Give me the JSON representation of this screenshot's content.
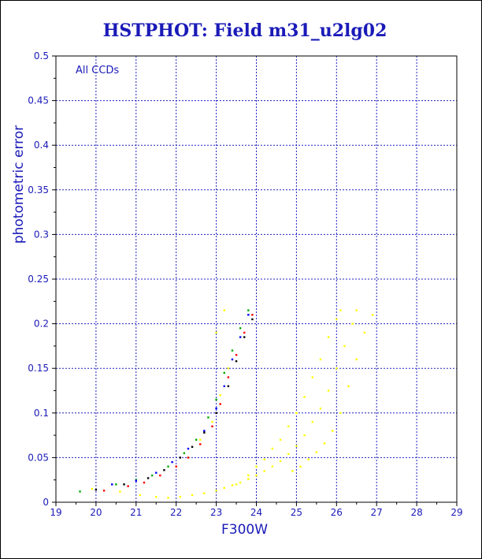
{
  "chart_data": {
    "type": "scatter",
    "title": "HSTPHOT: Field m31_u2lg02",
    "xlabel": "F300W",
    "ylabel": "photometric error",
    "annotation": "All CCDs",
    "xlim": [
      19,
      29
    ],
    "ylim": [
      0,
      0.5
    ],
    "xticks": [
      "19",
      "20",
      "21",
      "22",
      "23",
      "24",
      "25",
      "26",
      "27",
      "28",
      "29"
    ],
    "yticks": [
      "0",
      "0.05",
      "0.1",
      "0.15",
      "0.2",
      "0.25",
      "0.3",
      "0.35",
      "0.4",
      "0.45",
      "0.5"
    ],
    "grid": true,
    "colors": {
      "title": "#1a1ab8",
      "axis": "#1a1ab8",
      "grid": "#2020c0",
      "frame": "#000000"
    },
    "series": [
      {
        "color": "#ffff00",
        "points": [
          [
            19.9,
            0.015
          ],
          [
            20.6,
            0.012
          ],
          [
            21.1,
            0.008
          ],
          [
            21.5,
            0.006
          ],
          [
            21.8,
            0.005
          ],
          [
            22.1,
            0.006
          ],
          [
            22.4,
            0.008
          ],
          [
            22.7,
            0.01
          ],
          [
            23.0,
            0.013
          ],
          [
            23.2,
            0.016
          ],
          [
            23.4,
            0.019
          ],
          [
            23.6,
            0.022
          ],
          [
            23.8,
            0.026
          ],
          [
            24.0,
            0.03
          ],
          [
            24.2,
            0.035
          ],
          [
            24.4,
            0.04
          ],
          [
            24.6,
            0.046
          ],
          [
            24.8,
            0.054
          ],
          [
            25.0,
            0.063
          ],
          [
            25.2,
            0.075
          ],
          [
            25.4,
            0.09
          ],
          [
            25.6,
            0.105
          ],
          [
            25.8,
            0.125
          ],
          [
            26.0,
            0.15
          ],
          [
            26.2,
            0.175
          ],
          [
            26.4,
            0.2
          ],
          [
            26.5,
            0.215
          ],
          [
            23.5,
            0.02
          ],
          [
            23.8,
            0.03
          ],
          [
            24.0,
            0.04
          ],
          [
            24.2,
            0.048
          ],
          [
            24.4,
            0.06
          ],
          [
            24.6,
            0.07
          ],
          [
            24.8,
            0.085
          ],
          [
            25.0,
            0.1
          ],
          [
            25.2,
            0.118
          ],
          [
            25.4,
            0.14
          ],
          [
            25.6,
            0.16
          ],
          [
            25.8,
            0.185
          ],
          [
            26.0,
            0.205
          ],
          [
            26.1,
            0.215
          ],
          [
            24.9,
            0.035
          ],
          [
            25.1,
            0.04
          ],
          [
            25.3,
            0.048
          ],
          [
            25.5,
            0.056
          ],
          [
            25.7,
            0.066
          ],
          [
            25.9,
            0.08
          ],
          [
            26.1,
            0.1
          ],
          [
            26.3,
            0.13
          ],
          [
            26.5,
            0.16
          ],
          [
            26.7,
            0.19
          ],
          [
            26.9,
            0.21
          ],
          [
            23.2,
            0.215
          ],
          [
            23.0,
            0.19
          ],
          [
            23.1,
            0.12
          ],
          [
            23.3,
            0.15
          ],
          [
            22.9,
            0.09
          ],
          [
            22.6,
            0.07
          ],
          [
            22.3,
            0.05
          ],
          [
            22.0,
            0.04
          ]
        ]
      },
      {
        "color": "#ff0000",
        "points": [
          [
            20.2,
            0.013
          ],
          [
            20.8,
            0.018
          ],
          [
            21.2,
            0.022
          ],
          [
            21.6,
            0.03
          ],
          [
            22.0,
            0.04
          ],
          [
            22.3,
            0.05
          ],
          [
            22.6,
            0.065
          ],
          [
            22.9,
            0.085
          ],
          [
            23.1,
            0.11
          ],
          [
            23.3,
            0.14
          ],
          [
            23.5,
            0.165
          ],
          [
            23.7,
            0.19
          ],
          [
            23.9,
            0.21
          ]
        ]
      },
      {
        "color": "#00aa00",
        "points": [
          [
            19.6,
            0.012
          ],
          [
            20.5,
            0.02
          ],
          [
            21.0,
            0.025
          ],
          [
            21.4,
            0.03
          ],
          [
            21.8,
            0.04
          ],
          [
            22.2,
            0.055
          ],
          [
            22.5,
            0.07
          ],
          [
            22.8,
            0.095
          ],
          [
            23.0,
            0.115
          ],
          [
            23.2,
            0.145
          ],
          [
            23.4,
            0.17
          ],
          [
            23.6,
            0.195
          ],
          [
            23.8,
            0.215
          ]
        ]
      },
      {
        "color": "#0000ff",
        "points": [
          [
            20.4,
            0.02
          ],
          [
            21.0,
            0.024
          ],
          [
            21.5,
            0.033
          ],
          [
            21.9,
            0.045
          ],
          [
            22.3,
            0.06
          ],
          [
            22.7,
            0.08
          ],
          [
            23.0,
            0.105
          ],
          [
            23.2,
            0.13
          ],
          [
            23.4,
            0.16
          ],
          [
            23.6,
            0.185
          ],
          [
            23.8,
            0.21
          ]
        ]
      },
      {
        "color": "#000000",
        "points": [
          [
            20.0,
            0.014
          ],
          [
            20.7,
            0.02
          ],
          [
            21.3,
            0.027
          ],
          [
            21.7,
            0.036
          ],
          [
            22.1,
            0.05
          ],
          [
            22.4,
            0.062
          ],
          [
            22.7,
            0.078
          ],
          [
            23.0,
            0.1
          ],
          [
            23.3,
            0.13
          ],
          [
            23.5,
            0.158
          ],
          [
            23.7,
            0.185
          ],
          [
            23.9,
            0.205
          ]
        ]
      }
    ]
  }
}
